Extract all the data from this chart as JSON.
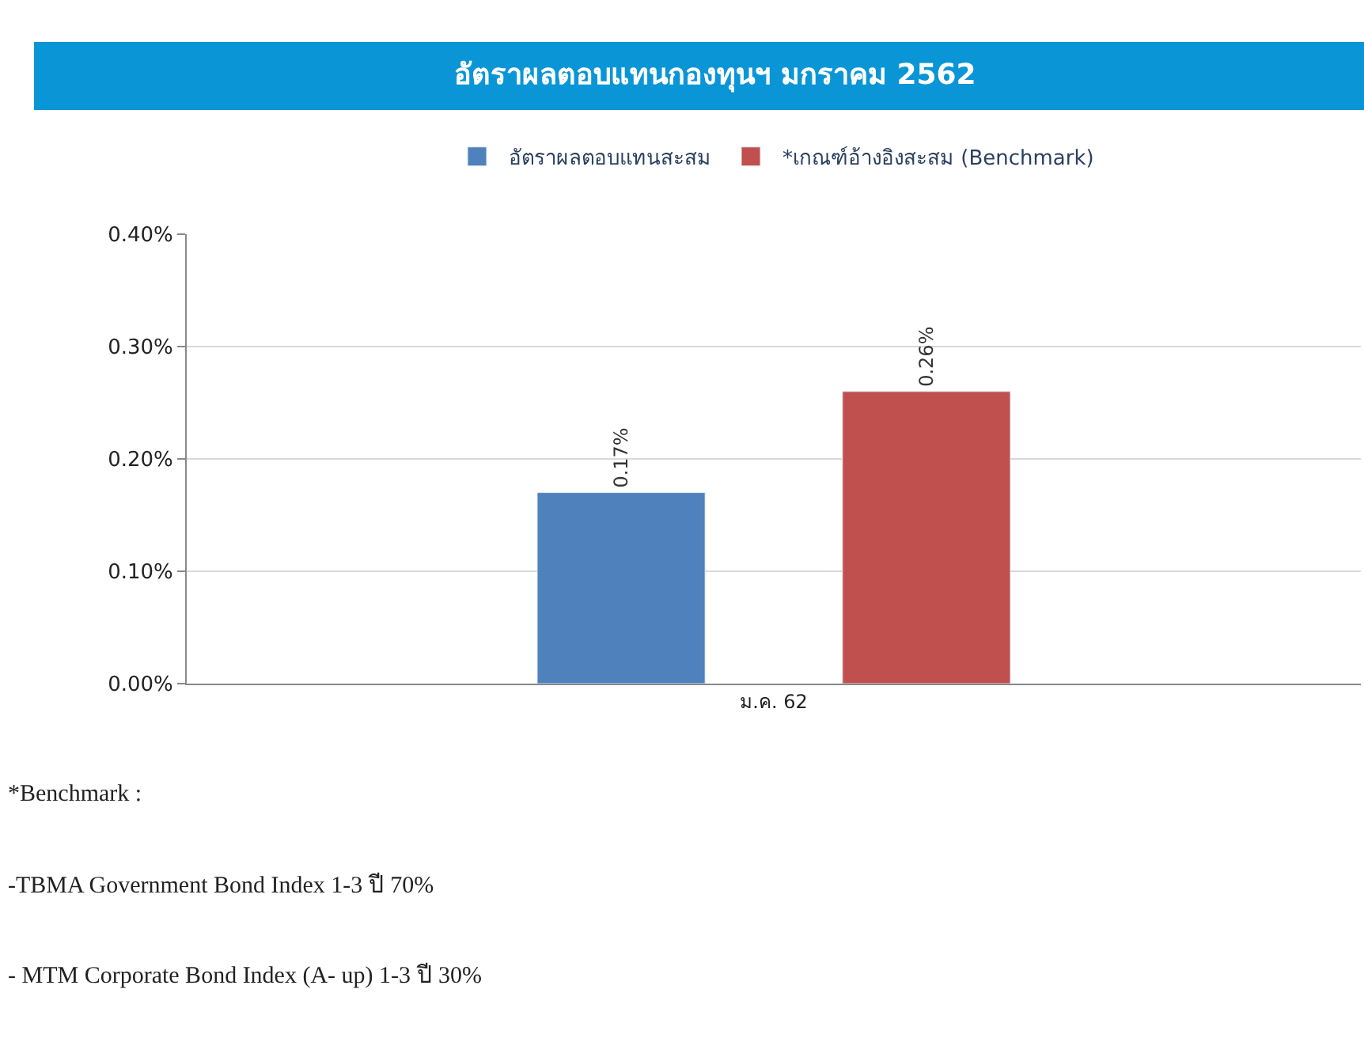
{
  "chart_data": {
    "type": "bar",
    "title": "อัตราผลตอบแทนกองทุนฯ มกราคม 2562",
    "categories": [
      "ม.ค. 62"
    ],
    "series": [
      {
        "name": "อัตราผลตอบแทนสะสม",
        "color": "#4f81bd",
        "values": [
          0.17
        ],
        "value_labels": [
          "0.17%"
        ]
      },
      {
        "name": "*เกณฑ์อ้างอิงสะสม (Benchmark)",
        "color": "#c0504d",
        "values": [
          0.26
        ],
        "value_labels": [
          "0.26%"
        ]
      }
    ],
    "ylim": [
      0,
      0.4
    ],
    "yticks": [
      {
        "value": 0,
        "label": "0.00%"
      },
      {
        "value": 0.1,
        "label": "0.10%"
      },
      {
        "value": 0.2,
        "label": "0.20%"
      },
      {
        "value": 0.3,
        "label": "0.30%"
      },
      {
        "value": 0.4,
        "label": "0.40%"
      }
    ],
    "grid": "y",
    "legend": "top",
    "annotations": [
      "*Benchmark :",
      "-TBMA Government Bond Index 1-3 ปี 70%",
      "- MTM Corporate Bond Index (A- up) 1-3 ปี 30%"
    ]
  }
}
